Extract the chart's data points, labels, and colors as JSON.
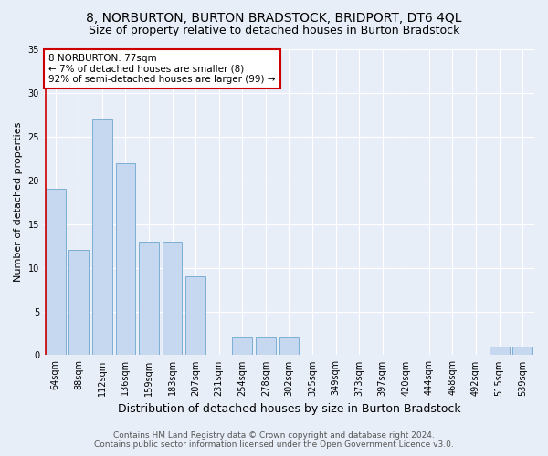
{
  "title": "8, NORBURTON, BURTON BRADSTOCK, BRIDPORT, DT6 4QL",
  "subtitle": "Size of property relative to detached houses in Burton Bradstock",
  "xlabel": "Distribution of detached houses by size in Burton Bradstock",
  "ylabel": "Number of detached properties",
  "footer_line1": "Contains HM Land Registry data © Crown copyright and database right 2024.",
  "footer_line2": "Contains public sector information licensed under the Open Government Licence v3.0.",
  "categories": [
    "64sqm",
    "88sqm",
    "112sqm",
    "136sqm",
    "159sqm",
    "183sqm",
    "207sqm",
    "231sqm",
    "254sqm",
    "278sqm",
    "302sqm",
    "325sqm",
    "349sqm",
    "373sqm",
    "397sqm",
    "420sqm",
    "444sqm",
    "468sqm",
    "492sqm",
    "515sqm",
    "539sqm"
  ],
  "values": [
    19,
    12,
    27,
    22,
    13,
    13,
    9,
    0,
    2,
    2,
    2,
    0,
    0,
    0,
    0,
    0,
    0,
    0,
    0,
    1,
    1
  ],
  "bar_color": "#c5d8f0",
  "bar_edge_color": "#7bafd4",
  "highlight_line_color": "#cc0000",
  "highlight_bar_index": 0,
  "annotation_text": "8 NORBURTON: 77sqm\n← 7% of detached houses are smaller (8)\n92% of semi-detached houses are larger (99) →",
  "annotation_box_color": "#ffffff",
  "annotation_box_edge_color": "#cc0000",
  "ylim": [
    0,
    35
  ],
  "yticks": [
    0,
    5,
    10,
    15,
    20,
    25,
    30,
    35
  ],
  "bg_color": "#e8eef8",
  "plot_bg_color": "#e8eef8",
  "grid_color": "#ffffff",
  "title_fontsize": 10,
  "subtitle_fontsize": 9,
  "xlabel_fontsize": 9,
  "ylabel_fontsize": 8,
  "tick_fontsize": 7,
  "annotation_fontsize": 7.5,
  "footer_fontsize": 6.5
}
